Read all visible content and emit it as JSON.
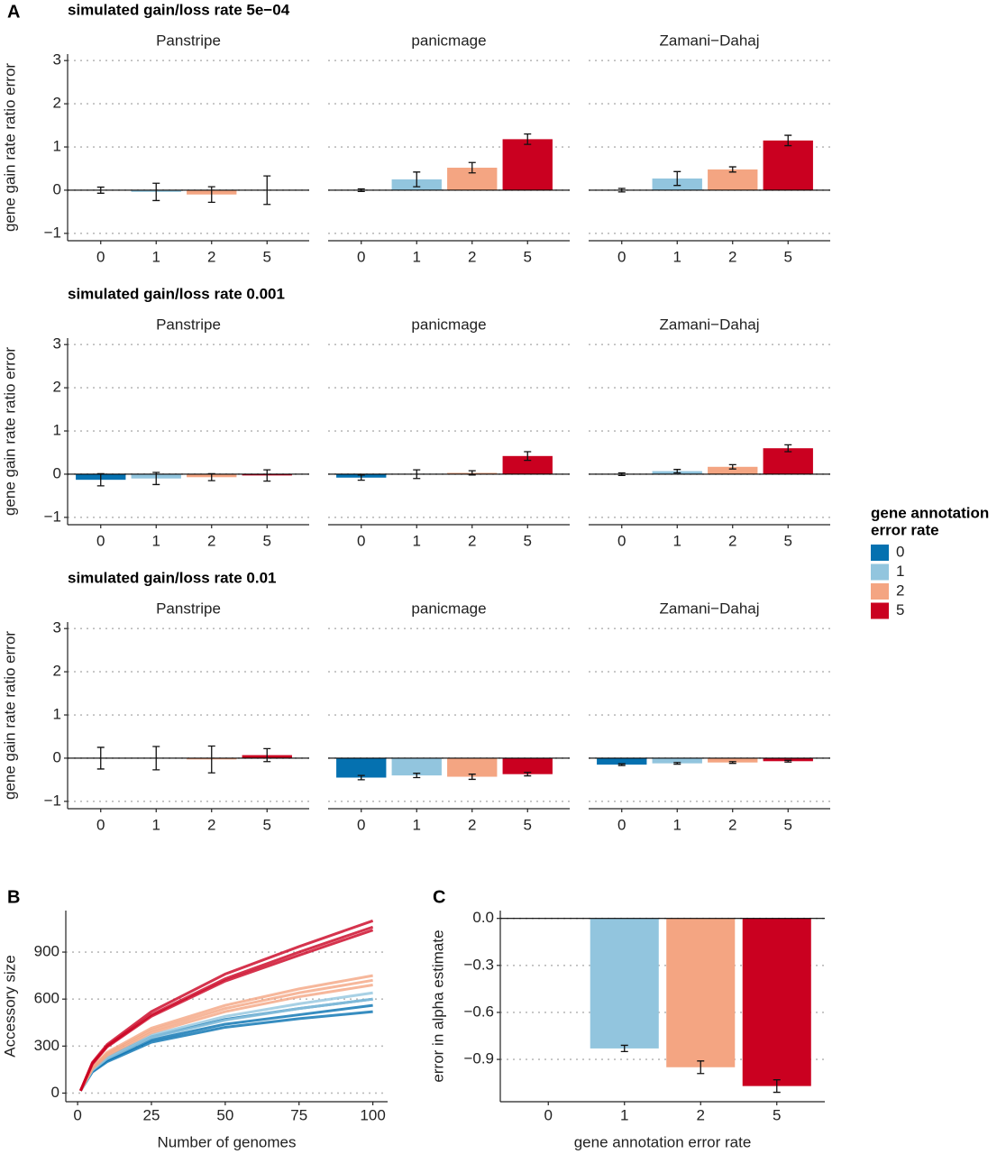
{
  "panel_labels": [
    "A",
    "B",
    "C"
  ],
  "chart_data": [
    {
      "type": "facet-bar",
      "ylabel": "gene gain rate ratio error",
      "categories": [
        "0",
        "1",
        "2",
        "5"
      ],
      "colors": [
        "#0571b0",
        "#92c5de",
        "#f4a582",
        "#ca0020"
      ],
      "legend": {
        "title": [
          "gene annotation",
          "error rate"
        ],
        "position": "right"
      },
      "ylim": [
        -1.17,
        3.15
      ],
      "yticks": [
        {
          "value": -1,
          "label": "−1"
        },
        0,
        1,
        2,
        3
      ],
      "grid": true,
      "rows": [
        {
          "title": "simulated gain/loss rate 5e−04",
          "panels": [
            {
              "title": "Panstripe",
              "values": [
                0,
                -0.04,
                -0.1,
                0
              ],
              "errors": [
                0.07,
                0.2,
                0.18,
                0.33
              ]
            },
            {
              "title": "panicmage",
              "values": [
                0,
                0.25,
                0.52,
                1.18
              ],
              "errors": [
                0.03,
                0.17,
                0.12,
                0.12
              ]
            },
            {
              "title": "Zamani−Dahaj",
              "values": [
                0,
                0.27,
                0.48,
                1.15
              ],
              "errors": [
                0.04,
                0.16,
                0.06,
                0.12
              ]
            }
          ]
        },
        {
          "title": "simulated gain/loss rate 0.001",
          "panels": [
            {
              "title": "Panstripe",
              "values": [
                -0.13,
                -0.1,
                -0.07,
                -0.03
              ],
              "errors": [
                0.14,
                0.14,
                0.08,
                0.13
              ]
            },
            {
              "title": "panicmage",
              "values": [
                -0.08,
                0,
                0.03,
                0.42
              ],
              "errors": [
                0.06,
                0.1,
                0.05,
                0.1
              ]
            },
            {
              "title": "Zamani−Dahaj",
              "values": [
                0,
                0.07,
                0.17,
                0.6
              ],
              "errors": [
                0.03,
                0.04,
                0.05,
                0.08
              ]
            }
          ]
        },
        {
          "title": "simulated gain/loss rate 0.01",
          "panels": [
            {
              "title": "Panstripe",
              "values": [
                0,
                0,
                -0.03,
                0.07
              ],
              "errors": [
                0.25,
                0.27,
                0.31,
                0.15
              ]
            },
            {
              "title": "panicmage",
              "values": [
                -0.45,
                -0.4,
                -0.43,
                -0.37
              ],
              "errors": [
                0.05,
                0.05,
                0.06,
                0.04
              ]
            },
            {
              "title": "Zamani−Dahaj",
              "values": [
                -0.15,
                -0.12,
                -0.1,
                -0.07
              ],
              "errors": [
                0.02,
                0.02,
                0.02,
                0.02
              ]
            }
          ]
        }
      ]
    },
    {
      "type": "line",
      "xlabel": "Number of genomes",
      "ylabel": "Accessory size",
      "x": [
        1,
        5,
        10,
        25,
        50,
        75,
        100
      ],
      "xlim": [
        -4,
        105
      ],
      "ylim": [
        -55,
        1165
      ],
      "xticks": [
        0,
        25,
        50,
        75,
        100
      ],
      "yticks": [
        0,
        300,
        600,
        900
      ],
      "grid": true,
      "series": [
        {
          "color": "#0571b0",
          "values": [
            15,
            140,
            210,
            340,
            440,
            500,
            560
          ]
        },
        {
          "color": "#0571b0",
          "values": [
            15,
            150,
            225,
            360,
            470,
            540,
            600
          ]
        },
        {
          "color": "#0571b0",
          "values": [
            15,
            135,
            200,
            325,
            420,
            475,
            520
          ]
        },
        {
          "color": "#92c5de",
          "values": [
            15,
            150,
            230,
            370,
            490,
            570,
            640
          ]
        },
        {
          "color": "#92c5de",
          "values": [
            15,
            145,
            220,
            355,
            465,
            540,
            600
          ]
        },
        {
          "color": "#f4a582",
          "values": [
            15,
            160,
            250,
            400,
            540,
            640,
            720
          ]
        },
        {
          "color": "#f4a582",
          "values": [
            15,
            165,
            260,
            415,
            560,
            665,
            750
          ]
        },
        {
          "color": "#f4a582",
          "values": [
            15,
            155,
            240,
            385,
            520,
            615,
            690
          ]
        },
        {
          "color": "#ca0020",
          "values": [
            15,
            190,
            300,
            500,
            730,
            900,
            1060
          ]
        },
        {
          "color": "#ca0020",
          "values": [
            15,
            195,
            310,
            520,
            760,
            935,
            1100
          ]
        },
        {
          "color": "#ca0020",
          "values": [
            15,
            185,
            295,
            490,
            715,
            880,
            1040
          ]
        }
      ]
    },
    {
      "type": "bar",
      "xlabel": "gene annotation error rate",
      "ylabel": "error in alpha estimate",
      "categories": [
        "0",
        "1",
        "2",
        "5"
      ],
      "colors": [
        "#0571b0",
        "#92c5de",
        "#f4a582",
        "#ca0020"
      ],
      "values": [
        null,
        -0.83,
        -0.95,
        -1.07
      ],
      "errors": [
        null,
        0.02,
        0.04,
        0.04
      ],
      "ylim": [
        -1.17,
        0.05
      ],
      "yticks": [
        {
          "value": 0,
          "label": "0.0"
        },
        {
          "value": -0.3,
          "label": "−0.3"
        },
        {
          "value": -0.6,
          "label": "−0.6"
        },
        {
          "value": -0.9,
          "label": "−0.9"
        }
      ],
      "grid": true
    }
  ]
}
